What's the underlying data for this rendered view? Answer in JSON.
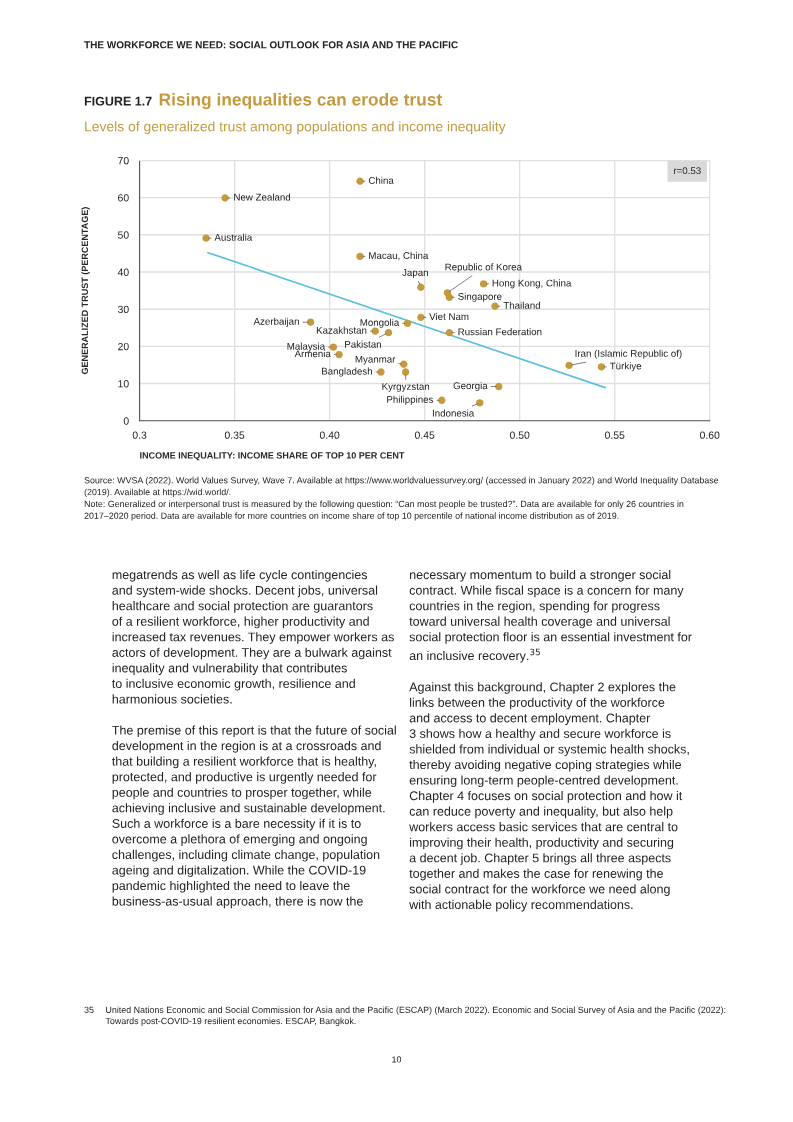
{
  "chart_data": {
    "type": "scatter",
    "title": "Rising inequalities can erode trust",
    "subtitle": "Levels of generalized trust among populations and income inequality",
    "xlabel": "INCOME INEQUALITY: INCOME SHARE OF TOP 10 PER CENT",
    "ylabel": "GENERALIZED TRUST (PERCENTAGE)",
    "xlim": [
      0.3,
      0.6
    ],
    "xticks": [
      0.3,
      0.35,
      {
        "value": 0.4,
        "label": "0.40"
      },
      0.45,
      {
        "value": 0.5,
        "label": "0.50"
      },
      0.55,
      {
        "value": 0.6,
        "label": "0.60"
      }
    ],
    "ylim": [
      0,
      70
    ],
    "yticks": [
      0,
      10,
      20,
      30,
      40,
      50,
      60,
      70
    ],
    "grid": true,
    "series": [
      {
        "marker": "circle",
        "color": "#c49a3c",
        "x": [
          0.345,
          0.335,
          0.416,
          0.416,
          0.448,
          0.462,
          0.481,
          0.463,
          0.487,
          0.448,
          0.441,
          0.463,
          0.39,
          0.424,
          0.431,
          0.402,
          0.405,
          0.439,
          0.427,
          0.44,
          0.526,
          0.543,
          0.489,
          0.459,
          0.479
        ],
        "values": [
          59.9,
          49.1,
          64.4,
          44.2,
          35.9,
          34.4,
          36.8,
          33.2,
          30.8,
          27.8,
          26.2,
          23.7,
          26.5,
          24.1,
          23.7,
          19.8,
          17.8,
          15.2,
          13.1,
          13.1,
          14.9,
          14.5,
          9.2,
          5.5,
          4.8
        ]
      },
      {
        "type": "line",
        "marker": "none",
        "color": "#5bc0de",
        "x": [
          0.336,
          0.545
        ],
        "values": [
          45.2,
          8.9
        ]
      }
    ],
    "annotations": [
      "THE WORKFORCE WE NEED: SOCIAL OUTLOOK FOR ASIA AND THE PACIFIC",
      "FIGURE 1.7",
      "r=0.53",
      "Source: WVSA (2022). World Values Survey, Wave 7. Available at https://www.worldvaluessurvey.org/ (accessed in January 2022) and World Inequality Database\n(2019). Available at https://wid.world/.\nNote: Generalized or interpersonal trust is measured by the following question: “Can most people be trusted?”. Data are available for only 26 countries in\n2017–2020 period. Data are available for more countries on income share of top 10 percentile of national income distribution as of 2019.",
      "megatrends as well as life cycle contingencies\nand system-wide shocks. Decent jobs, universal\nhealthcare and social protection are guarantors\nof a resilient workforce, higher productivity and\nincreased tax revenues. They empower workers as\nactors of development. They are a bulwark against\ninequality and vulnerability that contributes\nto inclusive economic growth, resilience and\nharmonious societies.\n\nThe premise of this report is that the future of social\ndevelopment in the region is at a crossroads and\nthat building a resilient workforce that is healthy,\nprotected, and productive is urgently needed for\npeople and countries to prosper together, while\nachieving inclusive and sustainable development.\nSuch a workforce is a bare necessity if it is to\novercome a plethora of emerging and ongoing\nchallenges, including climate change, population\nageing and digitalization. While the COVID-19\npandemic highlighted the need to leave the\nbusiness-as-usual approach, there is now the",
      "necessary momentum to build a stronger social\ncontract. While fiscal space is a concern for many\ncountries in the region, spending for progress\ntoward universal health coverage and universal\nsocial protection floor is an essential investment for\nan inclusive recovery.$^{35}$\n\nAgainst this background, Chapter 2 explores the\nlinks between the productivity of the workforce\nand access to decent employment. Chapter\n3 shows how a healthy and secure workforce is\nshielded from individual or systemic health shocks,\nthereby avoiding negative coping strategies while\nensuring long-term people-centred development.\nChapter 4 focuses on social protection and how it\ncan reduce poverty and inequality, but also help\nworkers access basic services that are central to\nimproving their health, productivity and securing\na decent job. Chapter 5 brings all three aspects\ntogether and makes the case for renewing the\nsocial contract for the workforce we need along\nwith actionable policy recommendations.",
      "35",
      "United Nations Economic and Social Commission for Asia and the Pacific (ESCAP) (March 2022). Economic and Social Survey of Asia and the Pacific (2022):\nTowards post-COVID-19 resilient economies. ESCAP, Bangkok.",
      "10",
      {
        "text": "New Zealand",
        "x": 0.345,
        "y": 59.9
      },
      {
        "text": "Australia",
        "x": 0.335,
        "y": 49.1
      },
      {
        "text": "China",
        "x": 0.416,
        "y": 64.4
      },
      {
        "text": "Macau, China",
        "x": 0.416,
        "y": 44.2
      },
      {
        "text": "Japan",
        "x": 0.448,
        "y": 35.9
      },
      {
        "text": "Republic of Korea",
        "x": 0.462,
        "y": 34.4
      },
      {
        "text": "Hong Kong, China",
        "x": 0.481,
        "y": 36.8
      },
      {
        "text": "Singapore",
        "x": 0.463,
        "y": 33.2
      },
      {
        "text": "Thailand",
        "x": 0.487,
        "y": 30.8
      },
      {
        "text": "Viet Nam",
        "x": 0.448,
        "y": 27.8
      },
      {
        "text": "Mongolia",
        "x": 0.441,
        "y": 26.2
      },
      {
        "text": "Russian Federation",
        "x": 0.463,
        "y": 23.7
      },
      {
        "text": "Azerbaijan",
        "x": 0.39,
        "y": 26.5
      },
      {
        "text": "Kazakhstan",
        "x": 0.424,
        "y": 24.1
      },
      {
        "text": "Pakistan",
        "x": 0.431,
        "y": 23.7
      },
      {
        "text": "Malaysia",
        "x": 0.402,
        "y": 19.8
      },
      {
        "text": "Armenia",
        "x": 0.405,
        "y": 17.8
      },
      {
        "text": "Myanmar",
        "x": 0.439,
        "y": 15.2
      },
      {
        "text": "Bangladesh",
        "x": 0.427,
        "y": 13.1
      },
      {
        "text": "Kyrgyzstan",
        "x": 0.44,
        "y": 13.1
      },
      {
        "text": "Iran (Islamic Republic of)",
        "x": 0.526,
        "y": 14.9
      },
      {
        "text": "Türkiye",
        "x": 0.543,
        "y": 14.5
      },
      {
        "text": "Georgia",
        "x": 0.489,
        "y": 9.2
      },
      {
        "text": "Philippines",
        "x": 0.459,
        "y": 5.5
      },
      {
        "text": "Indonesia",
        "x": 0.479,
        "y": 4.8
      }
    ]
  }
}
